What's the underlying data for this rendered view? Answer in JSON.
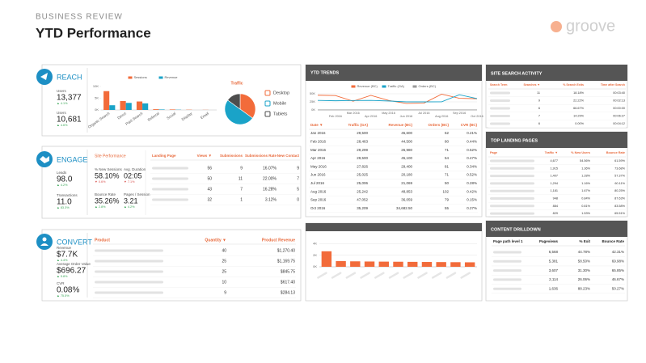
{
  "header": {
    "kicker": "BUSINESS REVIEW",
    "title": "YTD Performance",
    "logo": "groove"
  },
  "reach": {
    "title": "REACH",
    "metrics": [
      {
        "label": "Users",
        "value": "13,377",
        "delta": "▲ 4.1%"
      },
      {
        "label": "Users",
        "value": "10,681",
        "delta": "▲ 4.6%"
      }
    ]
  },
  "engage": {
    "title": "ENGAGE",
    "metrics": [
      {
        "label": "Leads",
        "value": "98.0",
        "delta": "▲ 4.2%"
      },
      {
        "label": "Transactions",
        "value": "11.0",
        "delta": "▲ 83.3%"
      }
    ],
    "site_performance": {
      "title": "Site Performance",
      "metrics": [
        {
          "label": "% New Sessions",
          "value": "58.10%",
          "delta": "▼ 0.6%"
        },
        {
          "label": "Avg. Duration",
          "value": "02:05",
          "delta": "▼ 7.1%"
        },
        {
          "label": "Bounce Rate",
          "value": "35.26%",
          "delta": "▲ 2.8%"
        },
        {
          "label": "Pages / Session",
          "value": "3.21",
          "delta": "▲ 4.2%"
        }
      ]
    },
    "table": {
      "headers": [
        "Landing Page",
        "Views ▼",
        "Submissions",
        "Submissions Rate",
        "New Contact"
      ],
      "rows": [
        [
          "56",
          "9",
          "16.07%",
          "9"
        ],
        [
          "50",
          "11",
          "22.00%",
          "7"
        ],
        [
          "43",
          "7",
          "16.28%",
          "5"
        ],
        [
          "32",
          "1",
          "3.12%",
          "0"
        ]
      ]
    }
  },
  "convert": {
    "title": "CONVERT",
    "metrics": [
      {
        "label": "Revenue",
        "value": "$7.7K",
        "delta": "▲ 4.4%"
      },
      {
        "label": "Average Order Value",
        "value": "$696.27",
        "delta": "▲ 5.8%"
      },
      {
        "label": "CVR",
        "value": "0.08%",
        "delta": "▲ 75.5%"
      }
    ],
    "table": {
      "headers": [
        "Product",
        "Quantity ▼",
        "Product Revenue"
      ],
      "rows": [
        [
          "40",
          "$1,270.40"
        ],
        [
          "25",
          "$1,169.75"
        ],
        [
          "25",
          "$845.75"
        ],
        [
          "10",
          "$617.40"
        ],
        [
          "9",
          "$284.13"
        ]
      ]
    }
  },
  "trends": {
    "title": "YTD TRENDS",
    "table": {
      "headers": [
        "Date ▼",
        "Traffic (GA)",
        "Revenue (BC)",
        "Orders (BC)",
        "CVR (BC)"
      ],
      "rows": [
        [
          "Jan 2016",
          "29,500",
          "45,600",
          "62",
          "0.21%"
        ],
        [
          "Feb 2016",
          "28,463",
          "44,500",
          "80",
          "0.44%"
        ],
        [
          "Mar 2016",
          "29,299",
          "26,980",
          "71",
          "0.52%"
        ],
        [
          "Apr 2016",
          "29,500",
          "45,100",
          "54",
          "0.47%"
        ],
        [
          "May 2016",
          "27,826",
          "29,400",
          "81",
          "0.34%"
        ],
        [
          "Jun 2016",
          "25,025",
          "20,180",
          "71",
          "0.52%"
        ],
        [
          "Jul 2016",
          "25,006",
          "21,069",
          "50",
          "0.28%"
        ],
        [
          "Aug 2016",
          "25,242",
          "48,853",
          "102",
          "0.42%"
        ],
        [
          "Sep 2016",
          "47,052",
          "36,059",
          "79",
          "0.15%"
        ],
        [
          "Oct 2016",
          "35,209",
          "34,682.50",
          "55",
          "0.27%"
        ]
      ]
    }
  },
  "site_search": {
    "title": "SITE SEARCH ACTIVITY",
    "table": {
      "headers": [
        "Search Term",
        "Searches ▼",
        "% Search Exits",
        "Time after Search"
      ],
      "rows": [
        [
          "11",
          "18.18%",
          "00:03:40"
        ],
        [
          "9",
          "22.22%",
          "00:02:13"
        ],
        [
          "6",
          "66.67%",
          "00:00:00"
        ],
        [
          "7",
          "14.29%",
          "00:06:27"
        ],
        [
          "6",
          "0.00%",
          "00:04:12"
        ]
      ]
    }
  },
  "top_landing": {
    "title": "TOP LANDING PAGES",
    "table": {
      "headers": [
        "Page",
        "Traffic ▼",
        "% New Users",
        "Bounce Rate"
      ],
      "rows": [
        [
          "4,677",
          "54.56%",
          "61.59%"
        ],
        [
          "1,915",
          "1.36%",
          "73.68%"
        ],
        [
          "1,407",
          "1.28%",
          "57.37%"
        ],
        [
          "1,294",
          "1.16%",
          "60.11%"
        ],
        [
          "1,181",
          "1.67%",
          "80.25%"
        ],
        [
          "948",
          "0.84%",
          "87.63%"
        ],
        [
          "884",
          "0.81%",
          "83.58%"
        ],
        [
          "829",
          "1.53%",
          "65.51%"
        ]
      ]
    }
  },
  "content_drilldown": {
    "title": "CONTENT DRILLDOWN",
    "table": {
      "headers": [
        "Page path level 1",
        "Pageviews",
        "% Exit",
        "Bounce Rate"
      ],
      "rows": [
        [
          "6,568",
          "44.78%",
          "42.31%"
        ],
        [
          "5,381",
          "58.50%",
          "69.98%"
        ],
        [
          "3,607",
          "31.30%",
          "65.85%"
        ],
        [
          "2,114",
          "26.06%",
          "46.67%"
        ],
        [
          "1,636",
          "88.23%",
          "50.27%"
        ]
      ]
    }
  },
  "chart_data": [
    {
      "type": "bar",
      "categories": [
        "Organic Search",
        "Direct",
        "Paid Search",
        "Referral",
        "Social",
        "Display",
        "Email"
      ],
      "series": [
        {
          "name": "Sessions",
          "color": "#f26b3a",
          "values": [
            8000,
            3800,
            3600,
            300,
            200,
            100,
            50
          ]
        },
        {
          "name": "Revenue",
          "color": "#1aa3c8",
          "values": [
            2000,
            3000,
            2800,
            200,
            100,
            0,
            0
          ]
        }
      ],
      "ylim": [
        0,
        11000
      ],
      "yticks": [
        {
          "value": 0,
          "label": "0K"
        },
        {
          "value": 5000,
          "label": "5K"
        },
        {
          "value": 10000,
          "label": "10K"
        }
      ]
    },
    {
      "type": "pie",
      "title": "Traffic",
      "categories": [
        "Desktop",
        "Mobile",
        "Tablets"
      ],
      "values": [
        35,
        50,
        15
      ],
      "colors": [
        "#f26b3a",
        "#1aa3c8",
        "#4d4d4d"
      ]
    },
    {
      "type": "line",
      "categories": [
        null,
        "Feb 2016",
        "Mar 2016",
        "Apr 2016",
        "May 2016",
        "Jun 2016",
        "Jul 2016",
        "Aug 2016",
        "Sep 2016",
        "Oct 2016"
      ],
      "series": [
        {
          "name": "Revenue (BC)",
          "color": "#f26b3a",
          "values": [
            45600,
            44500,
            26980,
            45100,
            29400,
            20180,
            21069,
            48853,
            36059,
            34682.5
          ]
        },
        {
          "name": "Traffic (GA)",
          "color": "#1aa3c8",
          "values": [
            29500,
            28463,
            29299,
            29500,
            27826,
            25025,
            25006,
            25242,
            47052,
            35209
          ]
        },
        {
          "name": "Orders (BC)",
          "color": "#999999",
          "values": [
            62,
            80,
            71,
            54,
            81,
            71,
            50,
            102,
            79,
            55
          ]
        }
      ],
      "ylim": [
        0,
        55000
      ],
      "yticks": [
        {
          "value": 0,
          "label": "0K"
        },
        {
          "value": 25000,
          "label": "25K"
        },
        {
          "value": 50000,
          "label": "50K"
        }
      ],
      "grid": true
    },
    {
      "type": "bar",
      "categories": [
        null,
        null,
        null,
        null,
        null,
        null,
        null,
        null,
        null,
        null,
        null
      ],
      "values": [
        2700,
        1000,
        950,
        920,
        900,
        880,
        860,
        840,
        820,
        800,
        780
      ],
      "color": "#f26b3a",
      "ylim": [
        0,
        4500
      ],
      "yticks": [
        {
          "value": 0,
          "label": "0K"
        },
        {
          "value": 2000,
          "label": "2K"
        },
        {
          "value": 4000,
          "label": "4K"
        }
      ],
      "grid": true
    }
  ]
}
